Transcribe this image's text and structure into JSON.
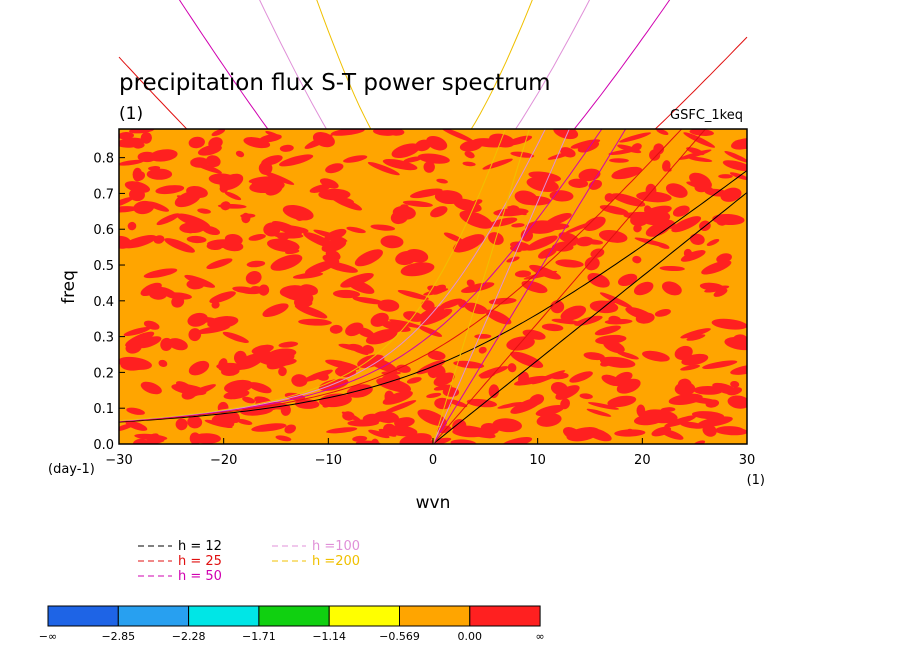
{
  "chart_data": {
    "type": "heatmap",
    "title": "precipitation flux S-T power spectrum",
    "subtitle": "(1)",
    "source_label": "GSFC_1keq",
    "xlabel": "wvn",
    "ylabel": "freq",
    "x_unit": "(1)",
    "y_unit": "(day-1)",
    "xlim": [
      -30,
      30
    ],
    "ylim": [
      0,
      0.88
    ],
    "x_ticks": [
      "−30",
      "−20",
      "−10",
      "0",
      "10",
      "20",
      "30"
    ],
    "x_tick_values": [
      -30,
      -20,
      -10,
      0,
      10,
      20,
      30
    ],
    "y_ticks": [
      "0.0",
      "0.1",
      "0.2",
      "0.3",
      "0.4",
      "0.5",
      "0.6",
      "0.7",
      "0.8"
    ],
    "y_tick_values": [
      0,
      0.1,
      0.2,
      0.3,
      0.4,
      0.5,
      0.6,
      0.7,
      0.8
    ],
    "field_description": "log10 power; field mostly in the -0.569 to 0.00 bin with scattered patches above 0.00",
    "dispersion_curves": [
      {
        "name": "h = 12",
        "depth": 12,
        "color": "#000000"
      },
      {
        "name": "h = 25",
        "depth": 25,
        "color": "#e01010"
      },
      {
        "name": "h = 50",
        "depth": 50,
        "color": "#d000b0"
      },
      {
        "name": "h =100",
        "depth": 100,
        "color": "#e090d8"
      },
      {
        "name": "h =200",
        "depth": 200,
        "color": "#f0c000"
      }
    ],
    "legend_position": "bottom-left",
    "colorbar": {
      "labels": [
        "−∞",
        "−2.85",
        "−2.28",
        "−1.71",
        "−1.14",
        "−0.569",
        "0.00",
        "∞"
      ],
      "colors": [
        "#1e64e6",
        "#28a0f0",
        "#00e6e6",
        "#10d010",
        "#ffff00",
        "#ffa500",
        "#ff2020"
      ]
    }
  }
}
